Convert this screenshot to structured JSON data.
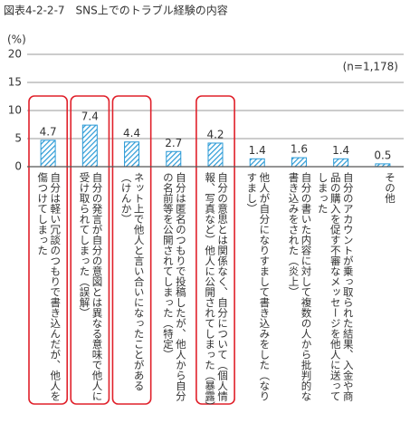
{
  "chart_data": {
    "type": "bar",
    "title": "図表4-2-2-7　SNS上でのトラブル経験の内容",
    "y_label": "(%)",
    "annotation": "(n=1,178)",
    "categories": [
      "自分は軽い冗談のつもりで書き込んだが、他人を傷つけてしまった",
      "自分の発言が自分の意図とは異なる意味で他人に受け取られてしまった（誤解）",
      "ネット上で他人と言い合いになったことがある（けんか）",
      "自分は匿名のつもりで投稿したが、他人から自分の名前等を公開されてしまった（特定）",
      "自分の意思とは関係なく、自分について（個人情報、写真など）他人に公開されてしまった（暴露）",
      "他人が自分になりすまして書き込みをした（なりすまし）",
      "自分の書いた内容に対して複数の人から批判的な書き込みをされた（炎上）",
      "自分のアカウントが乗っ取られた結果、入金や商品の購入を促す不審なメッセージを他人に送ってしまった",
      "その他"
    ],
    "values": [
      4.7,
      7.4,
      4.4,
      2.7,
      4.2,
      1.4,
      1.6,
      1.4,
      0.5
    ],
    "color": "#2a9ad6",
    "highlight": [
      0,
      1,
      2,
      4
    ],
    "highlight_color": "#e0202a",
    "ylim": [
      0,
      20
    ],
    "yticks": [
      0,
      5,
      10,
      15,
      20
    ],
    "grid": true
  }
}
